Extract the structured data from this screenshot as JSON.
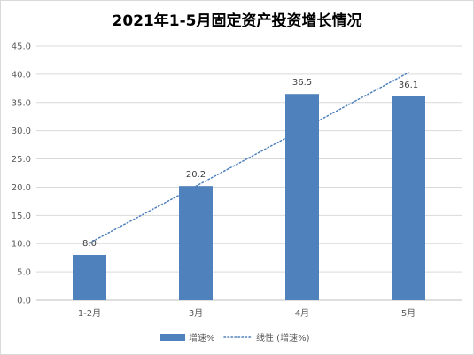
{
  "chart_data": {
    "type": "bar",
    "title": "2021年1-5月固定资产投资增长情况",
    "categories": [
      "1-2月",
      "3月",
      "4月",
      "5月"
    ],
    "series": [
      {
        "name": "增速%",
        "values": [
          8.0,
          20.2,
          36.5,
          36.1
        ],
        "color": "#4f81bd"
      }
    ],
    "trendline": {
      "name": "线性 (增速%)",
      "type": "linear",
      "color": "#4f81bd",
      "style": "dotted"
    },
    "data_labels": [
      "8.0",
      "20.2",
      "36.5",
      "36.1"
    ],
    "ylim": [
      0,
      45
    ],
    "yticks": [
      "0.0",
      "5.0",
      "10.0",
      "15.0",
      "20.0",
      "25.0",
      "30.0",
      "35.0",
      "40.0",
      "45.0"
    ],
    "grid": true,
    "legend_position": "bottom"
  }
}
